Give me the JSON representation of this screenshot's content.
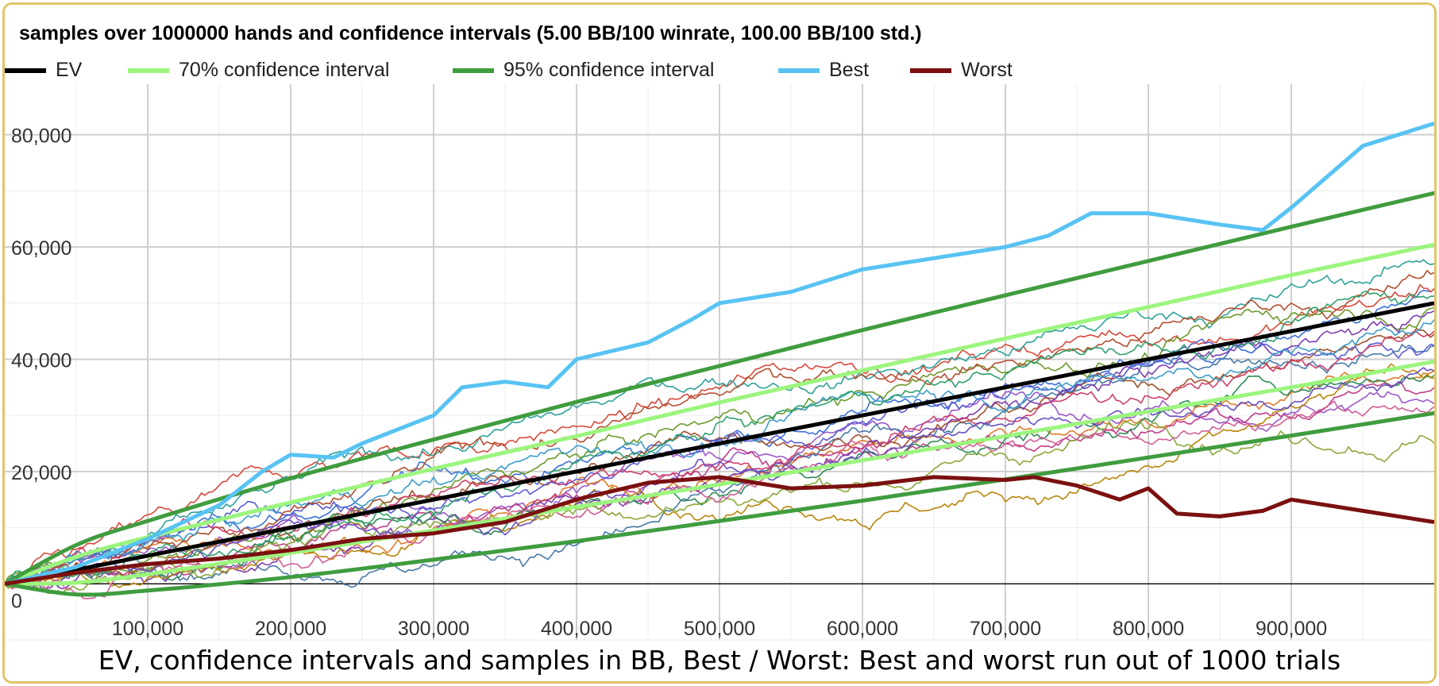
{
  "colors": {
    "frame_border": "#e2c56a",
    "ev": "#000000",
    "ci70": "#9cf57e",
    "ci95": "#3f9c3f",
    "best": "#58c3f2",
    "worst": "#7b1010",
    "grid": "#d9d9d9",
    "zero_line": "#000000"
  },
  "caption": "EV, confidence intervals and samples in BB, Best / Worst: Best and worst run out of 1000 trials",
  "chart_data": {
    "type": "line",
    "title": "samples over 1000000 hands and confidence intervals (5.00 BB/100 winrate, 100.00 BB/100 std.)",
    "legend_position": "top",
    "grid": true,
    "xlabel": "",
    "ylabel": "",
    "xlim": [
      0,
      1000000
    ],
    "ylim": [
      -10000,
      89000
    ],
    "x_ticks": [
      100000,
      200000,
      300000,
      400000,
      500000,
      600000,
      700000,
      800000,
      900000
    ],
    "x_tick_labels": [
      "100,000",
      "200,000",
      "300,000",
      "400,000",
      "500,000",
      "600,000",
      "700,000",
      "800,000",
      "900,000"
    ],
    "y_ticks": [
      0,
      20000,
      40000,
      60000,
      80000
    ],
    "y_tick_labels": [
      "0",
      "20,000",
      "40,000",
      "60,000",
      "80,000"
    ],
    "winrate_bb_per_100": 5.0,
    "std_bb_per_100": 100.0,
    "hands": 1000000,
    "series": [
      {
        "name": "EV",
        "key": "ev",
        "x": [
          0,
          250000,
          500000,
          750000,
          1000000
        ],
        "values": [
          0,
          12500,
          25000,
          37500,
          50000
        ]
      },
      {
        "name": "70% confidence interval",
        "key": "ci70_upper",
        "x": [
          0,
          50000,
          100000,
          200000,
          300000,
          400000,
          500000,
          600000,
          700000,
          800000,
          900000,
          1000000
        ],
        "values": [
          0,
          4800,
          8300,
          14500,
          20500,
          26300,
          32300,
          38000,
          43700,
          49300,
          55000,
          60400
        ]
      },
      {
        "name": "70% confidence interval",
        "key": "ci70_lower",
        "x": [
          0,
          50000,
          100000,
          200000,
          300000,
          400000,
          500000,
          600000,
          700000,
          800000,
          900000,
          1000000
        ],
        "values": [
          0,
          200,
          1700,
          5500,
          9500,
          13700,
          17700,
          22000,
          26300,
          30700,
          35000,
          39600
        ]
      },
      {
        "name": "95% confidence interval",
        "key": "ci95_upper",
        "x": [
          0,
          50000,
          100000,
          200000,
          300000,
          400000,
          500000,
          600000,
          700000,
          800000,
          900000,
          1000000
        ],
        "values": [
          0,
          6900,
          11200,
          18800,
          25700,
          32400,
          38800,
          45200,
          51400,
          57500,
          63600,
          69600
        ]
      },
      {
        "name": "95% confidence interval",
        "key": "ci95_lower",
        "x": [
          0,
          50000,
          100000,
          200000,
          300000,
          400000,
          500000,
          600000,
          700000,
          800000,
          900000,
          1000000
        ],
        "values": [
          0,
          -1900,
          -1200,
          1200,
          4300,
          7600,
          11200,
          14800,
          18600,
          22500,
          26400,
          30400
        ]
      },
      {
        "name": "Best",
        "key": "best",
        "x": [
          0,
          50000,
          100000,
          150000,
          180000,
          200000,
          230000,
          250000,
          300000,
          320000,
          350000,
          380000,
          400000,
          450000,
          480000,
          500000,
          550000,
          600000,
          650000,
          700000,
          730000,
          760000,
          800000,
          850000,
          880000,
          900000,
          950000,
          1000000
        ],
        "values": [
          0,
          3000,
          8000,
          14000,
          20000,
          23000,
          22500,
          25000,
          30000,
          35000,
          36000,
          35000,
          40000,
          43000,
          47000,
          50000,
          52000,
          56000,
          58000,
          60000,
          62000,
          66000,
          66000,
          64000,
          63000,
          67000,
          78000,
          82000
        ]
      },
      {
        "name": "Worst",
        "key": "worst",
        "x": [
          0,
          50000,
          100000,
          150000,
          200000,
          250000,
          300000,
          350000,
          400000,
          450000,
          500000,
          550000,
          600000,
          650000,
          700000,
          720000,
          750000,
          780000,
          800000,
          820000,
          850000,
          880000,
          900000,
          950000,
          1000000
        ],
        "values": [
          0,
          2000,
          3500,
          4500,
          6000,
          8000,
          9000,
          11000,
          15000,
          18000,
          19000,
          17000,
          17500,
          19000,
          18500,
          19000,
          17500,
          15000,
          17000,
          12500,
          12000,
          13000,
          15000,
          13000,
          11000
        ]
      }
    ]
  }
}
